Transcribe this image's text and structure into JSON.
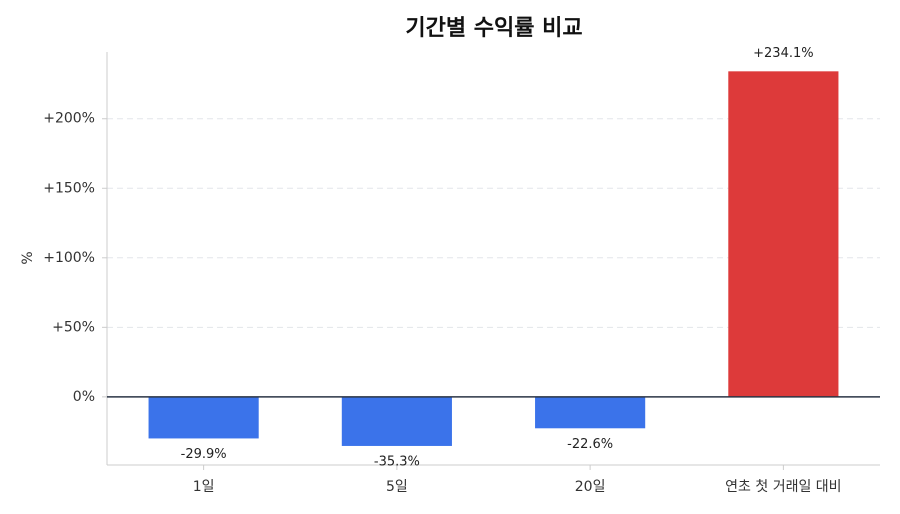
{
  "chart_data": {
    "type": "bar",
    "title": "기간별 수익률 비교",
    "y_label": "%",
    "categories": [
      "1일",
      "5일",
      "20일",
      "연초 첫 거래일 대비"
    ],
    "values": [
      -29.9,
      -35.3,
      -22.6,
      234.1
    ],
    "value_labels": [
      "-29.9%",
      "-35.3%",
      "-22.6%",
      "+234.1%"
    ],
    "colors": [
      "#3b73ea",
      "#3b73ea",
      "#3b73ea",
      "#dd3a3a"
    ],
    "ylim": [
      -49,
      248
    ],
    "yticks": [
      {
        "value": 0,
        "label": "0%"
      },
      {
        "value": 50,
        "label": "+50%"
      },
      {
        "value": 100,
        "label": "+100%"
      },
      {
        "value": 150,
        "label": "+150%"
      },
      {
        "value": 200,
        "label": "+200%"
      }
    ],
    "grid": true
  }
}
